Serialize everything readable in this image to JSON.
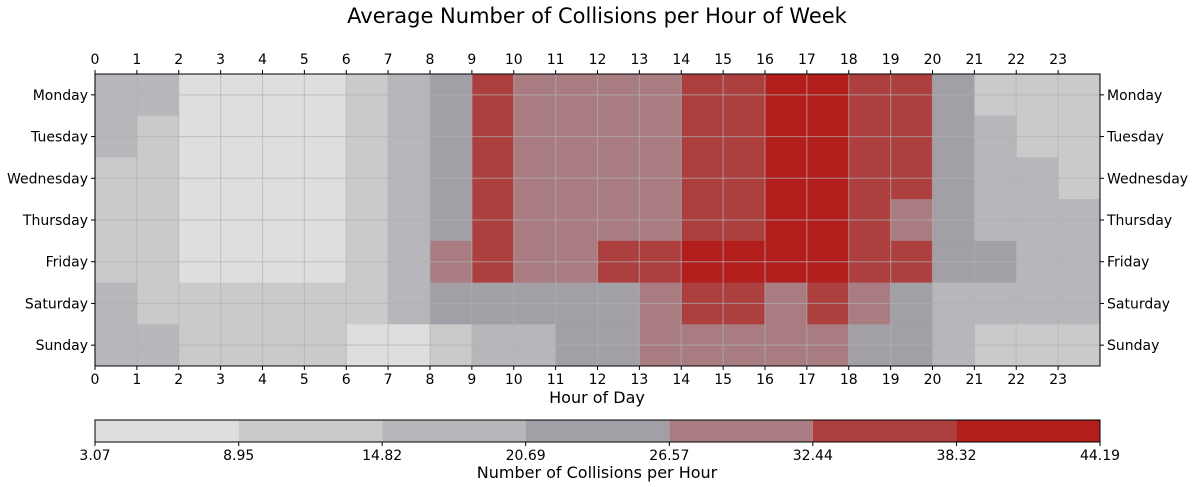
{
  "chart_data": {
    "type": "heatmap",
    "title": "Average Number of Collisions per Hour of Week",
    "xlabel": "Hour of Day",
    "colorbar_label": "Number of Collisions per Hour",
    "x": [
      0,
      1,
      2,
      3,
      4,
      5,
      6,
      7,
      8,
      9,
      10,
      11,
      12,
      13,
      14,
      15,
      16,
      17,
      18,
      19,
      20,
      21,
      22,
      23
    ],
    "x_tick_labels": [
      "0",
      "1",
      "2",
      "3",
      "4",
      "5",
      "6",
      "7",
      "8",
      "9",
      "10",
      "11",
      "12",
      "13",
      "14",
      "15",
      "16",
      "17",
      "18",
      "19",
      "20",
      "21",
      "22",
      "23"
    ],
    "y": [
      "Monday",
      "Tuesday",
      "Wednesday",
      "Thursday",
      "Friday",
      "Saturday",
      "Sunday"
    ],
    "xlim": [
      0,
      24
    ],
    "levels": [
      3.07,
      8.95,
      14.82,
      20.69,
      26.57,
      32.44,
      38.32,
      44.19
    ],
    "level_labels": [
      "3.07",
      "8.95",
      "14.82",
      "20.69",
      "26.57",
      "32.44",
      "38.32",
      "44.19"
    ],
    "level_colors": [
      "#dedede",
      "#cacaca",
      "#b7b6bb",
      "#a29fa7",
      "#a87c80",
      "#ad3f3f",
      "#b21e1c"
    ],
    "values": [
      [
        17,
        15,
        7,
        6,
        6,
        6,
        13,
        17,
        22,
        36,
        30,
        30,
        30,
        30,
        36,
        36,
        40,
        40,
        36,
        33,
        22,
        14,
        12,
        10
      ],
      [
        15,
        12,
        6,
        5,
        5,
        5,
        13,
        17,
        22,
        36,
        32,
        30,
        30,
        30,
        36,
        36,
        40,
        40,
        36,
        33,
        24,
        18,
        14,
        12
      ],
      [
        14,
        12,
        5,
        5,
        5,
        5,
        13,
        17,
        22,
        36,
        30,
        30,
        30,
        30,
        36,
        36,
        40,
        40,
        36,
        33,
        24,
        20,
        16,
        14
      ],
      [
        12,
        10,
        5,
        5,
        5,
        5,
        13,
        18,
        22,
        36,
        32,
        30,
        30,
        30,
        36,
        36,
        40,
        40,
        36,
        32,
        24,
        19,
        16,
        15
      ],
      [
        14,
        12,
        5,
        5,
        5,
        6,
        14,
        20,
        30,
        34,
        32,
        32,
        33,
        36,
        42,
        42,
        40,
        40,
        38,
        33,
        26,
        22,
        20,
        18
      ],
      [
        19,
        13,
        10,
        9,
        9,
        13,
        12,
        16,
        22,
        26,
        26,
        26,
        26,
        28,
        36,
        33,
        30,
        36,
        30,
        24,
        20,
        20,
        20,
        18
      ],
      [
        19,
        15,
        11,
        10,
        10,
        10,
        7,
        7,
        13,
        18,
        20,
        24,
        25,
        28,
        32,
        30,
        30,
        30,
        22,
        22,
        18,
        14,
        12,
        10
      ]
    ],
    "colorbar": "bottom, horizontal",
    "grid": true
  }
}
